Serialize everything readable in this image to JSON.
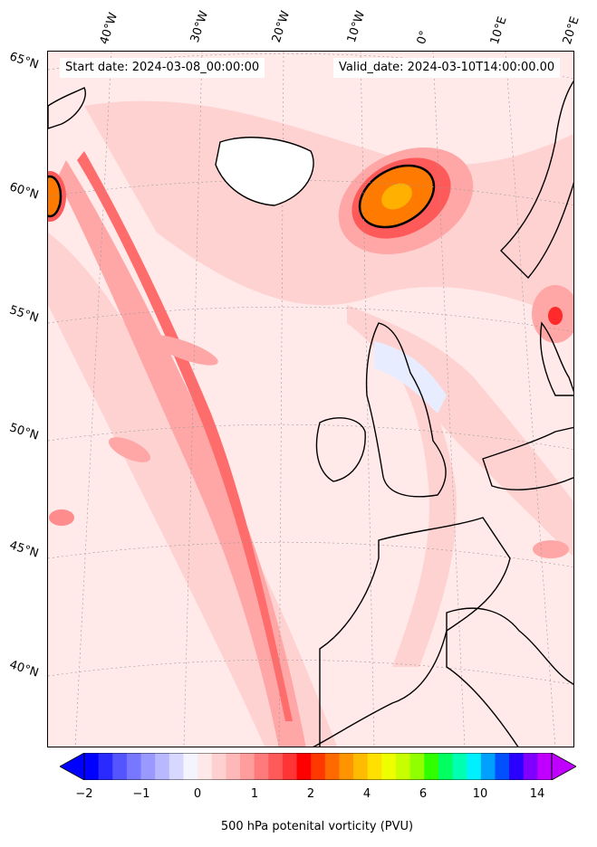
{
  "map": {
    "start_label": "Start date: 2024-03-08_00:00:00",
    "valid_label": "Valid_date: 2024-03-10T14:00:00.00",
    "lon_labels": [
      "40°W",
      "30°W",
      "20°W",
      "10°W",
      "0°",
      "10°E",
      "20°E"
    ],
    "lat_labels": [
      "65°N",
      "60°N",
      "55°N",
      "50°N",
      "45°N",
      "40°N"
    ],
    "field_colors": {
      "background": "#ffe9e9",
      "light": "#ffd2d2",
      "medium": "#ffa6a6",
      "strong": "#ff6c6c",
      "peak": "#ff2a2a",
      "core": "#ff7a00",
      "core_center": "#ffb000",
      "negative": "#e8ecff",
      "coast": "#000000"
    }
  },
  "colorbar": {
    "label": "500 hPa potenital vorticity (PVU)",
    "tick_labels": [
      "−2",
      "−1",
      "0",
      "1",
      "2",
      "4",
      "6",
      "10",
      "14"
    ],
    "colors": [
      "#0000ff",
      "#2a2aff",
      "#5555ff",
      "#7777ff",
      "#9999ff",
      "#b8b8ff",
      "#d7d7ff",
      "#f4f4ff",
      "#ffe8e8",
      "#ffd0d0",
      "#ffb8b8",
      "#ff9c9c",
      "#ff7b7b",
      "#ff5a5a",
      "#ff3434",
      "#ff0000",
      "#ff3800",
      "#ff6a00",
      "#ff9400",
      "#ffbb00",
      "#ffe000",
      "#eeff00",
      "#c8ff00",
      "#90ff00",
      "#30ff00",
      "#00ff60",
      "#00ffb0",
      "#00f0ff",
      "#00a0ff",
      "#0050ff",
      "#2a00ff",
      "#8000ff",
      "#c000ff"
    ]
  }
}
